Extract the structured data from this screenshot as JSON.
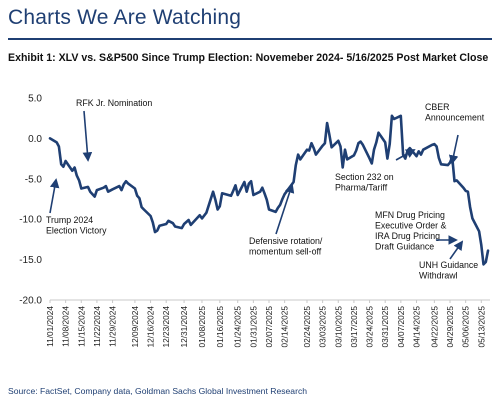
{
  "header": {
    "title": "Charts We Are Watching"
  },
  "exhibit": {
    "title": "Exhibit 1: XLV vs. S&P500 Since Trump Election: Novemeber 2024- 5/16/2025 Post Market Close"
  },
  "footer": {
    "source": "Source: FactSet, Company data, Goldman Sachs Global Investment Research"
  },
  "colors": {
    "line": "#1f3f73",
    "title": "#1f3f73",
    "axis": "#c8c8c8"
  },
  "chart_data": {
    "type": "line",
    "title": "",
    "xlabel": "",
    "ylabel": "",
    "ylim": [
      -20,
      5
    ],
    "yticks": [
      5,
      0,
      -5,
      -10,
      -15,
      -20
    ],
    "ytick_labels": [
      "5.0",
      "0.0",
      "-5.0",
      "-10.0",
      "-15.0",
      "-20.0"
    ],
    "x_range": [
      "2024-11-01",
      "2025-05-16"
    ],
    "xtick_labels": [
      "11/01/2024",
      "11/08/2024",
      "11/15/2024",
      "11/22/2024",
      "11/29/2024",
      "12/09/2024",
      "12/16/2024",
      "12/23/2024",
      "12/31/2024",
      "01/08/2025",
      "01/16/2025",
      "01/24/2025",
      "01/31/2025",
      "02/07/2025",
      "02/14/2025",
      "02/24/2025",
      "03/03/2025",
      "03/10/2025",
      "03/17/2025",
      "03/24/2025",
      "03/31/2025",
      "04/07/2025",
      "04/14/2025",
      "04/22/2025",
      "04/29/2025",
      "05/06/2025",
      "05/13/2025"
    ],
    "xtick_dates": [
      "2024-11-01",
      "2024-11-08",
      "2024-11-15",
      "2024-11-22",
      "2024-11-29",
      "2024-12-09",
      "2024-12-16",
      "2024-12-23",
      "2024-12-31",
      "2025-01-08",
      "2025-01-16",
      "2025-01-24",
      "2025-01-31",
      "2025-02-07",
      "2025-02-14",
      "2025-02-24",
      "2025-03-03",
      "2025-03-10",
      "2025-03-17",
      "2025-03-24",
      "2025-03-31",
      "2025-04-07",
      "2025-04-14",
      "2025-04-22",
      "2025-04-29",
      "2025-05-06",
      "2025-05-13"
    ],
    "grid": false,
    "legend": "none",
    "series": [
      {
        "x": [
          "2024-11-01",
          "2024-11-04",
          "2024-11-05",
          "2024-11-06",
          "2024-11-07",
          "2024-11-08",
          "2024-11-11",
          "2024-11-12",
          "2024-11-13",
          "2024-11-14",
          "2024-11-15",
          "2024-11-18",
          "2024-11-19",
          "2024-11-20",
          "2024-11-21",
          "2024-11-22",
          "2024-11-25",
          "2024-11-26",
          "2024-11-27",
          "2024-11-29",
          "2024-12-02",
          "2024-12-03",
          "2024-12-04",
          "2024-12-05",
          "2024-12-06",
          "2024-12-09",
          "2024-12-10",
          "2024-12-11",
          "2024-12-12",
          "2024-12-13",
          "2024-12-16",
          "2024-12-17",
          "2024-12-18",
          "2024-12-19",
          "2024-12-20",
          "2024-12-23",
          "2024-12-24",
          "2024-12-26",
          "2024-12-27",
          "2024-12-30",
          "2024-12-31",
          "2025-01-02",
          "2025-01-03",
          "2025-01-06",
          "2025-01-07",
          "2025-01-08",
          "2025-01-10",
          "2025-01-13",
          "2025-01-14",
          "2025-01-15",
          "2025-01-16",
          "2025-01-17",
          "2025-01-21",
          "2025-01-22",
          "2025-01-23",
          "2025-01-24",
          "2025-01-27",
          "2025-01-28",
          "2025-01-29",
          "2025-01-30",
          "2025-01-31",
          "2025-02-03",
          "2025-02-04",
          "2025-02-05",
          "2025-02-06",
          "2025-02-07",
          "2025-02-10",
          "2025-02-11",
          "2025-02-12",
          "2025-02-13",
          "2025-02-14",
          "2025-02-18",
          "2025-02-19",
          "2025-02-20",
          "2025-02-21",
          "2025-02-24",
          "2025-02-25",
          "2025-02-26",
          "2025-02-27",
          "2025-02-28",
          "2025-03-03",
          "2025-03-04",
          "2025-03-05",
          "2025-03-06",
          "2025-03-07",
          "2025-03-10",
          "2025-03-11",
          "2025-03-12",
          "2025-03-13",
          "2025-03-14",
          "2025-03-17",
          "2025-03-18",
          "2025-03-19",
          "2025-03-20",
          "2025-03-21",
          "2025-03-24",
          "2025-03-25",
          "2025-03-26",
          "2025-03-27",
          "2025-03-28",
          "2025-03-31",
          "2025-04-01",
          "2025-04-02",
          "2025-04-03",
          "2025-04-04",
          "2025-04-07",
          "2025-04-08",
          "2025-04-09",
          "2025-04-10",
          "2025-04-11",
          "2025-04-14",
          "2025-04-15",
          "2025-04-16",
          "2025-04-17",
          "2025-04-21",
          "2025-04-22",
          "2025-04-23",
          "2025-04-24",
          "2025-04-25",
          "2025-04-28",
          "2025-04-29",
          "2025-04-30",
          "2025-05-01",
          "2025-05-02",
          "2025-05-05",
          "2025-05-06",
          "2025-05-07",
          "2025-05-08",
          "2025-05-09",
          "2025-05-12",
          "2025-05-13",
          "2025-05-14",
          "2025-05-15",
          "2025-05-16"
        ],
        "y": [
          0.0,
          -0.5,
          -1.0,
          -3.2,
          -3.5,
          -2.8,
          -4.0,
          -3.6,
          -4.6,
          -5.2,
          -6.2,
          -6.0,
          -6.6,
          -6.9,
          -7.2,
          -6.4,
          -6.1,
          -5.9,
          -6.6,
          -6.3,
          -5.9,
          -6.4,
          -5.7,
          -5.3,
          -5.6,
          -6.2,
          -7.1,
          -7.4,
          -8.5,
          -8.8,
          -9.6,
          -10.4,
          -11.6,
          -11.4,
          -10.8,
          -10.6,
          -10.2,
          -10.5,
          -10.9,
          -11.1,
          -10.6,
          -10.1,
          -10.7,
          -9.8,
          -9.5,
          -9.9,
          -9.2,
          -6.6,
          -7.6,
          -8.8,
          -8.4,
          -6.8,
          -7.1,
          -6.5,
          -5.8,
          -7.0,
          -5.4,
          -6.6,
          -5.6,
          -5.3,
          -7.0,
          -6.6,
          -6.1,
          -6.8,
          -7.6,
          -8.8,
          -9.1,
          -8.6,
          -8.2,
          -7.5,
          -6.9,
          -5.4,
          -3.3,
          -2.0,
          -2.6,
          -1.4,
          -1.5,
          -0.6,
          -1.2,
          -2.0,
          -0.9,
          -0.6,
          1.9,
          0.5,
          -1.1,
          -0.3,
          -1.0,
          -3.6,
          -1.4,
          -2.6,
          -2.1,
          -1.5,
          -0.6,
          -0.4,
          -0.8,
          -2.5,
          -3.1,
          -1.4,
          -0.5,
          0.7,
          -0.5,
          -2.5,
          -0.7,
          2.8,
          2.4,
          2.8,
          -2.0,
          -2.5,
          -1.5,
          -1.2,
          -2.2,
          -1.6,
          -2.0,
          -1.4,
          -0.8,
          -0.7,
          -1.0,
          -2.4,
          -3.2,
          -3.3,
          -3.0,
          -2.3,
          -5.3,
          -5.2,
          -6.1,
          -6.5,
          -6.6,
          -8.5,
          -9.9,
          -11.5,
          -13.2,
          -15.6,
          -15.3,
          -13.9
        ]
      }
    ],
    "annotations": [
      {
        "text": [
          "RFK Jr. Nomination"
        ],
        "points_to": "2024-11-14"
      },
      {
        "text": [
          "Trump 2024",
          "Election Victory"
        ],
        "points_to": "2024-11-06"
      },
      {
        "text": [
          "Defensive rotation/",
          "momentum sell-off"
        ],
        "points_to": "2025-02-24"
      },
      {
        "text": [
          "Section 232 on",
          "Pharma/Tariff"
        ],
        "points_to": "2025-04-14"
      },
      {
        "text": [
          "CBER",
          "Announcement"
        ],
        "points_to": "2025-04-29"
      },
      {
        "text": [
          "MFN Drug Pricing",
          "Executive Order &",
          "IRA Drug Pricing",
          "Draft Guidance"
        ],
        "points_to": "2025-05-12"
      },
      {
        "text": [
          "UNH Guidance",
          "Withdrawl"
        ],
        "points_to": "2025-05-13"
      }
    ]
  }
}
